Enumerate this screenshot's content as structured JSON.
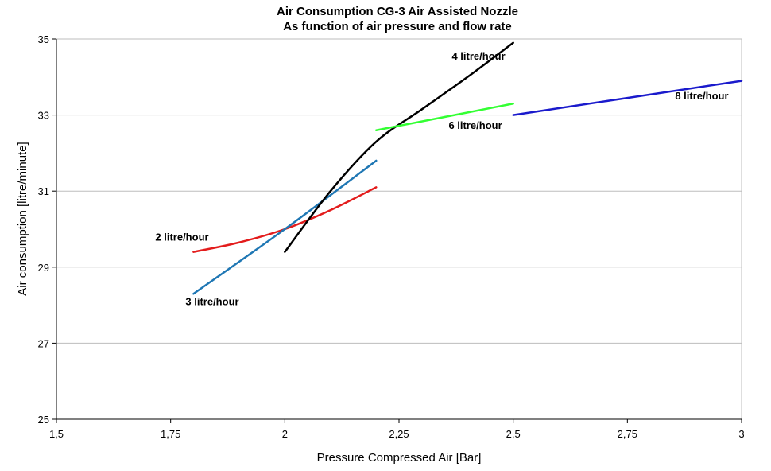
{
  "chart_data": {
    "type": "line",
    "title": "Air Consumption  CG-3 Air Assisted  Nozzle",
    "subtitle": "As function  of air pressure and flow rate",
    "xlabel": "Pressure Compressed Air [Bar]",
    "ylabel": "Air consumption  [litre/minute]",
    "xlim": [
      1.5,
      3
    ],
    "ylim": [
      25,
      35
    ],
    "x_ticks": [
      "1,5",
      "1,75",
      "2",
      "2,25",
      "2,5",
      "2,75",
      "3"
    ],
    "y_ticks": [
      "25",
      "27",
      "29",
      "31",
      "33",
      "35"
    ],
    "grid": "horizontal",
    "series": [
      {
        "name": "2 litre/hour",
        "color": "#e31c1c",
        "x": [
          1.8,
          1.9,
          2.0,
          2.1,
          2.2
        ],
        "y": [
          29.4,
          29.65,
          30.0,
          30.5,
          31.1
        ]
      },
      {
        "name": "3 litre/hour",
        "color": "#1f77b4",
        "x": [
          1.8,
          2.0,
          2.2
        ],
        "y": [
          28.3,
          30.0,
          31.8
        ]
      },
      {
        "name": "4 litre/hour",
        "color": "#000000",
        "x": [
          2.0,
          2.1,
          2.2,
          2.3,
          2.4,
          2.5
        ],
        "y": [
          29.4,
          31.0,
          32.3,
          33.15,
          34.0,
          34.9
        ]
      },
      {
        "name": "6 litre/hour",
        "color": "#33ff33",
        "x": [
          2.2,
          2.5
        ],
        "y": [
          32.6,
          33.3
        ]
      },
      {
        "name": "8 litre/hour",
        "color": "#1a1acc",
        "x": [
          2.5,
          3.0
        ],
        "y": [
          33.0,
          33.9
        ]
      }
    ]
  }
}
